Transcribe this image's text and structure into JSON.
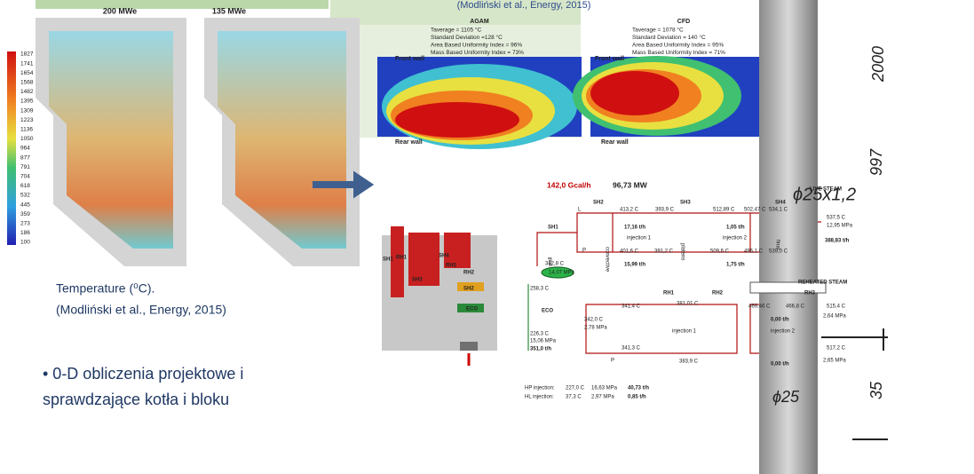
{
  "left": {
    "panel_labels": [
      "200 MWe",
      "135 MWe"
    ],
    "colorbar": [
      1827,
      1741,
      1654,
      1568,
      1482,
      1395,
      1309,
      1223,
      1136,
      1050,
      964,
      877,
      791,
      704,
      618,
      532,
      445,
      359,
      273,
      186,
      100
    ],
    "caption": [
      "Temperature  (⁰C).",
      "(Modliński et al., Energy, 2015)"
    ],
    "bullet": [
      "• 0-D obliczenia projektowe i",
      "sprawdzające kotła i bloku"
    ]
  },
  "heatmaps": {
    "caption": "(Modliński et al., Energy, 2015)",
    "panels": [
      {
        "title": "AGAM",
        "stats": [
          "Taverage = 1105 °C",
          "Standard Deviation =128 °C",
          "Area Based Uniformity Index = 96%",
          "Mass Based Uniformity Index = 73%"
        ],
        "front": "Front wall",
        "rear": "Rear wall"
      },
      {
        "title": "CFD",
        "stats": [
          "Taverage = 1078 °C",
          "Standard Deviation = 140 °C",
          "Area Based Uniformity Index = 95%",
          "Mass Based Uniformity Index = 71%"
        ],
        "front": "Front wall",
        "rear": "Rear wall"
      }
    ]
  },
  "schematic": {
    "labels": [
      "SH1",
      "RH1",
      "SH4",
      "RH3",
      "SH3",
      "RH2",
      "SH2",
      "ECO"
    ]
  },
  "flow": {
    "labels": [
      "142,0 Gcal/h",
      "96,73 MW",
      "SH2",
      "SH3",
      "SH4",
      "LIVE STEAM",
      "L",
      "P",
      "SH1",
      "wall",
      "convective",
      "platens",
      "final",
      "413,2 C",
      "393,9 C",
      "512,89 C",
      "502,47 C",
      "534,1 C",
      "17,16 t/h",
      "1,05 t/h",
      "injection 1",
      "injection 2",
      "401,6 C",
      "391,2 C",
      "509,6 C",
      "496,1 C",
      "539,0 C",
      "15,99 t/h",
      "1,75 t/h",
      "537,5 C",
      "12,95 MPa",
      "388,83 t/h",
      "342,8 C",
      "14,07 MPa",
      "258,3 C",
      "ECO",
      "226,3 C",
      "15,06 MPa",
      "351,0 t/h",
      "REHEATED STEAM",
      "RH1",
      "RH2",
      "RH3",
      "341,4 C",
      "381,01 C",
      "469,46 C",
      "466,8 C",
      "515,4 C",
      "2,64 MPa",
      "342,0 C",
      "2,78 MPa",
      "injection 1",
      "injection 2",
      "0,00 t/h",
      "341,3 C",
      "517,2 C",
      "383,9 C",
      "0,00 t/h",
      "2,65 MPa",
      "P",
      "HP injection:",
      "227,0 C",
      "16,63 MPa",
      "40,73 t/h",
      "HL injection:",
      "37,3 C",
      "2,97 MPa",
      "0,85 t/h"
    ]
  },
  "drawing": {
    "labels": [
      "2000",
      "997",
      "ϕ25x1,2",
      "ϕ25",
      "35"
    ]
  }
}
